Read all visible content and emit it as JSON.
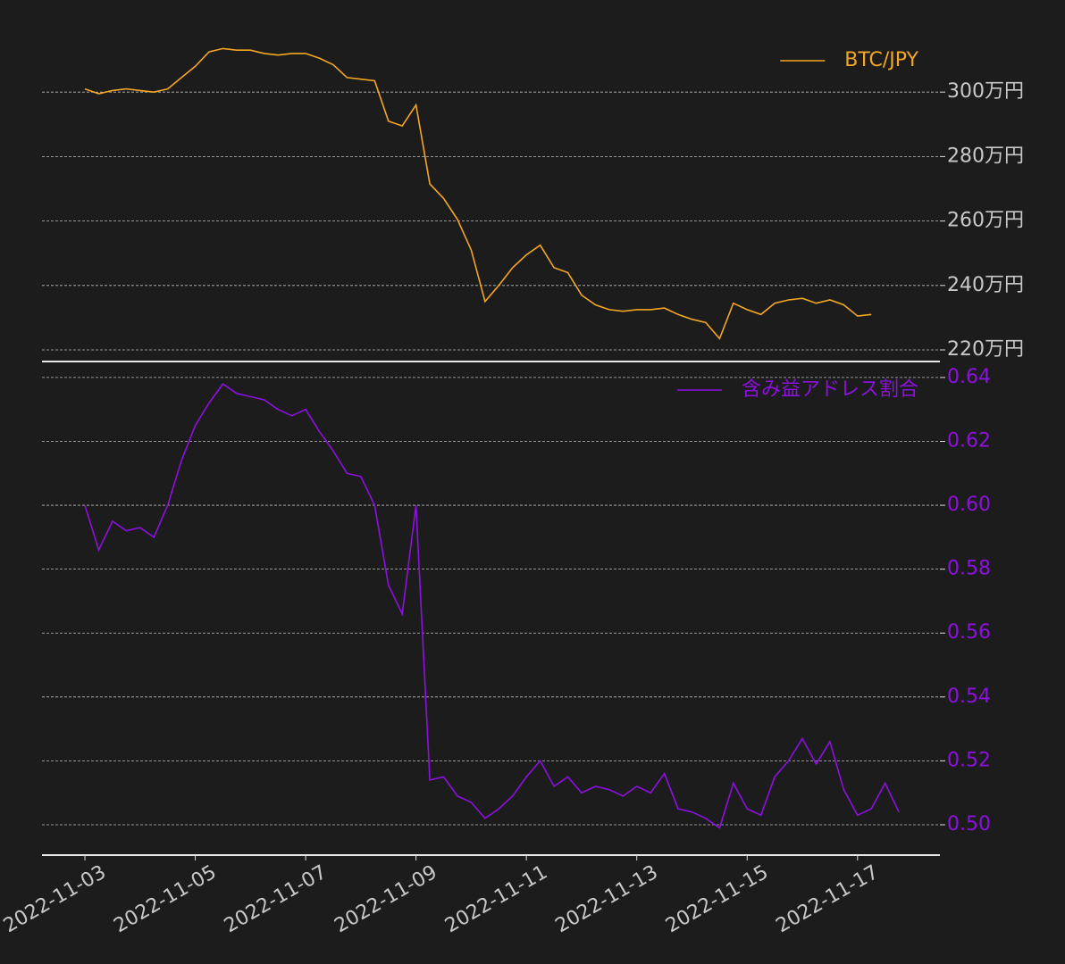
{
  "chart_data": [
    {
      "type": "line",
      "xlim": [
        "2022-11-02 05:20",
        "2022-11-18 11:50"
      ],
      "ylim": [
        2164000,
        3175000
      ],
      "yticks": [
        {
          "value": 2200000,
          "label": "220万円"
        },
        {
          "value": 2400000,
          "label": "240万円"
        },
        {
          "value": 2600000,
          "label": "260万円"
        },
        {
          "value": 2800000,
          "label": "280万円"
        },
        {
          "value": 3000000,
          "label": "300万円"
        }
      ],
      "ytick_color": "#c8c8c8",
      "grid": true,
      "legend": "upper right",
      "x": [
        "2022-11-03 00:00",
        "2022-11-03 06:00",
        "2022-11-03 12:00",
        "2022-11-03 18:00",
        "2022-11-04 00:00",
        "2022-11-04 06:00",
        "2022-11-04 12:00",
        "2022-11-04 18:00",
        "2022-11-05 00:00",
        "2022-11-05 06:00",
        "2022-11-05 12:00",
        "2022-11-05 18:00",
        "2022-11-06 00:00",
        "2022-11-06 06:00",
        "2022-11-06 12:00",
        "2022-11-06 18:00",
        "2022-11-07 00:00",
        "2022-11-07 06:00",
        "2022-11-07 12:00",
        "2022-11-07 18:00",
        "2022-11-08 00:00",
        "2022-11-08 06:00",
        "2022-11-08 12:00",
        "2022-11-08 18:00",
        "2022-11-09 00:00",
        "2022-11-09 06:00",
        "2022-11-09 12:00",
        "2022-11-09 18:00",
        "2022-11-10 00:00",
        "2022-11-10 06:00",
        "2022-11-10 12:00",
        "2022-11-10 18:00",
        "2022-11-11 00:00",
        "2022-11-11 06:00",
        "2022-11-11 12:00",
        "2022-11-11 18:00",
        "2022-11-12 00:00",
        "2022-11-12 06:00",
        "2022-11-12 12:00",
        "2022-11-12 18:00",
        "2022-11-13 00:00",
        "2022-11-13 06:00",
        "2022-11-13 12:00",
        "2022-11-13 18:00",
        "2022-11-14 00:00",
        "2022-11-14 06:00",
        "2022-11-14 12:00",
        "2022-11-14 18:00",
        "2022-11-15 00:00",
        "2022-11-15 06:00",
        "2022-11-15 12:00",
        "2022-11-15 18:00",
        "2022-11-16 00:00",
        "2022-11-16 06:00",
        "2022-11-16 12:00",
        "2022-11-16 18:00",
        "2022-11-17 00:00",
        "2022-11-17 06:00"
      ],
      "series": [
        {
          "name": "BTC/JPY",
          "color": "#f5a623",
          "values": [
            3010000,
            2995000,
            3005000,
            3010000,
            3005000,
            3000000,
            3010000,
            3045000,
            3080000,
            3125000,
            3135000,
            3130000,
            3130000,
            3120000,
            3115000,
            3120000,
            3120000,
            3105000,
            3085000,
            3045000,
            3040000,
            3035000,
            2910000,
            2895000,
            2960000,
            2715000,
            2670000,
            2605000,
            2510000,
            2350000,
            2400000,
            2455000,
            2495000,
            2525000,
            2455000,
            2440000,
            2370000,
            2340000,
            2325000,
            2320000,
            2325000,
            2325000,
            2330000,
            2310000,
            2295000,
            2285000,
            2235000,
            2345000,
            2325000,
            2310000,
            2345000,
            2355000,
            2360000,
            2345000,
            2355000,
            2340000,
            2305000,
            2310000
          ]
        }
      ]
    },
    {
      "type": "line",
      "xlim": [
        "2022-11-02 05:20",
        "2022-11-18 11:50"
      ],
      "ylim": [
        0.4905,
        0.645
      ],
      "yticks": [
        {
          "value": 0.5,
          "label": "0.50"
        },
        0.52,
        0.54,
        0.56,
        0.58,
        {
          "value": 0.6,
          "label": "0.60"
        },
        0.62,
        0.64
      ],
      "ytick_color": "#8e10e0",
      "xticks": [
        "2022-11-03",
        "2022-11-05",
        "2022-11-07",
        "2022-11-09",
        "2022-11-11",
        "2022-11-13",
        "2022-11-15",
        "2022-11-17"
      ],
      "grid": true,
      "legend": "upper right",
      "x": [
        "2022-11-03 00:00",
        "2022-11-03 06:00",
        "2022-11-03 12:00",
        "2022-11-03 18:00",
        "2022-11-04 00:00",
        "2022-11-04 06:00",
        "2022-11-04 12:00",
        "2022-11-04 18:00",
        "2022-11-05 00:00",
        "2022-11-05 06:00",
        "2022-11-05 12:00",
        "2022-11-05 18:00",
        "2022-11-06 00:00",
        "2022-11-06 06:00",
        "2022-11-06 12:00",
        "2022-11-06 18:00",
        "2022-11-07 00:00",
        "2022-11-07 06:00",
        "2022-11-07 12:00",
        "2022-11-07 18:00",
        "2022-11-08 00:00",
        "2022-11-08 06:00",
        "2022-11-08 12:00",
        "2022-11-08 18:00",
        "2022-11-09 00:00",
        "2022-11-09 06:00",
        "2022-11-09 12:00",
        "2022-11-09 18:00",
        "2022-11-10 00:00",
        "2022-11-10 06:00",
        "2022-11-10 12:00",
        "2022-11-10 18:00",
        "2022-11-11 00:00",
        "2022-11-11 06:00",
        "2022-11-11 12:00",
        "2022-11-11 18:00",
        "2022-11-12 00:00",
        "2022-11-12 06:00",
        "2022-11-12 12:00",
        "2022-11-12 18:00",
        "2022-11-13 00:00",
        "2022-11-13 06:00",
        "2022-11-13 12:00",
        "2022-11-13 18:00",
        "2022-11-14 00:00",
        "2022-11-14 06:00",
        "2022-11-14 12:00",
        "2022-11-14 18:00",
        "2022-11-15 00:00",
        "2022-11-15 06:00",
        "2022-11-15 12:00",
        "2022-11-15 18:00",
        "2022-11-16 00:00",
        "2022-11-16 06:00",
        "2022-11-16 12:00",
        "2022-11-16 18:00",
        "2022-11-17 00:00",
        "2022-11-17 06:00",
        "2022-11-17 12:00",
        "2022-11-17 18:00"
      ],
      "series": [
        {
          "name": "含み益アドレス割合",
          "color": "#8e10e0",
          "values": [
            0.6,
            0.586,
            0.595,
            0.592,
            0.593,
            0.59,
            0.6,
            0.614,
            0.625,
            0.632,
            0.638,
            0.635,
            0.634,
            0.633,
            0.63,
            0.628,
            0.63,
            0.623,
            0.617,
            0.61,
            0.609,
            0.6,
            0.575,
            0.566,
            0.6,
            0.514,
            0.515,
            0.509,
            0.507,
            0.502,
            0.505,
            0.509,
            0.515,
            0.52,
            0.512,
            0.515,
            0.51,
            0.512,
            0.511,
            0.509,
            0.512,
            0.51,
            0.516,
            0.505,
            0.504,
            0.502,
            0.499,
            0.513,
            0.505,
            0.503,
            0.515,
            0.52,
            0.527,
            0.519,
            0.526,
            0.511,
            0.503,
            0.505,
            0.513,
            0.504
          ]
        }
      ]
    }
  ]
}
